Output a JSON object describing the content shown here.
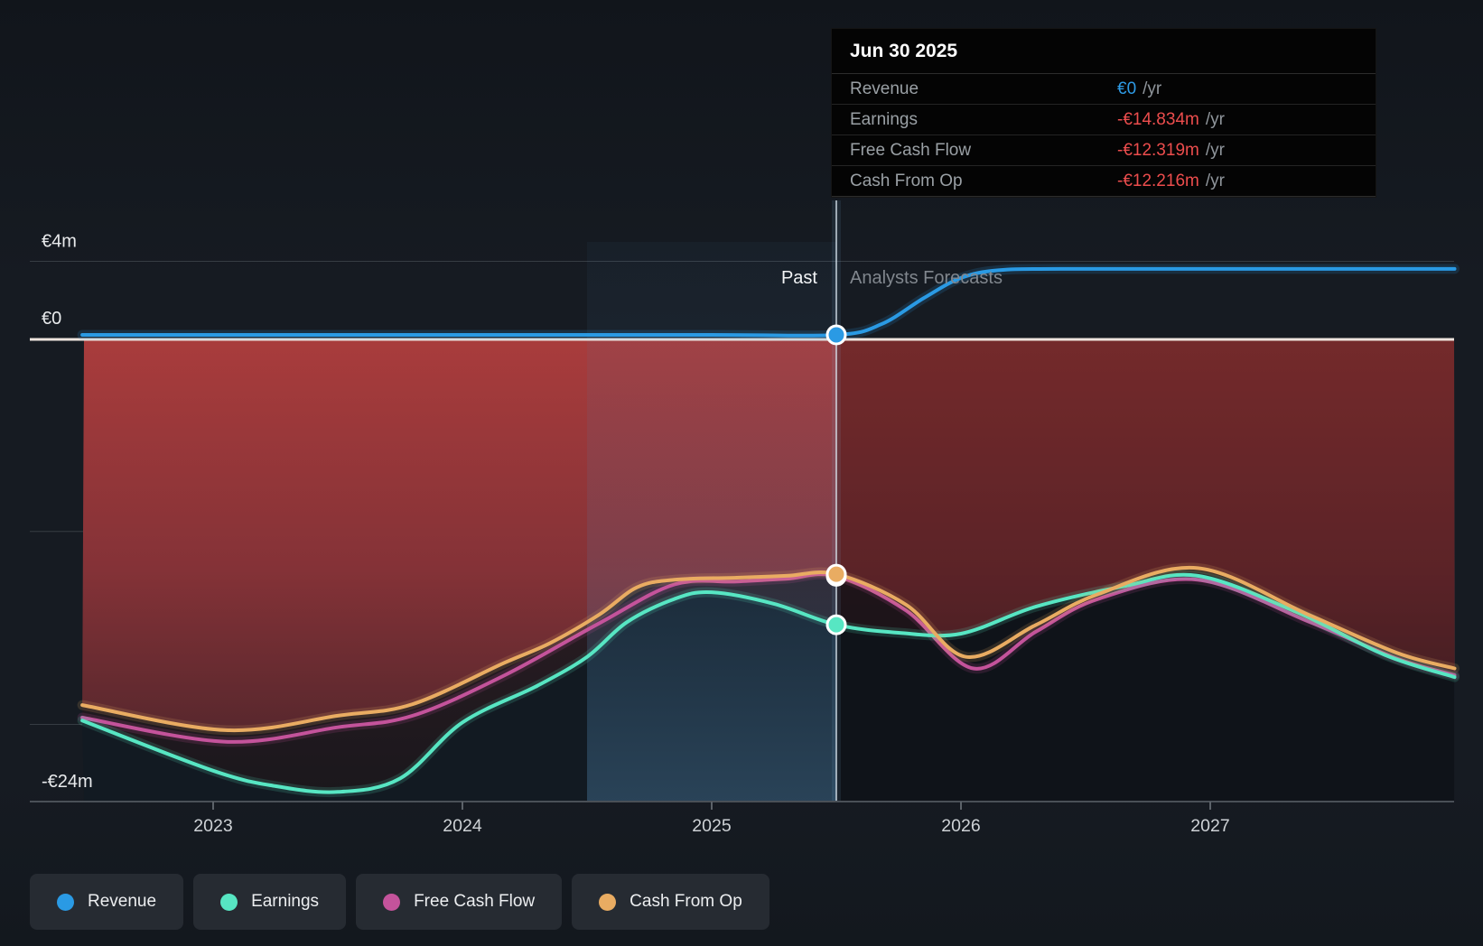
{
  "tooltip": {
    "date": "Jun 30 2025",
    "rows": [
      {
        "label": "Revenue",
        "value": "€0",
        "unit": "/yr",
        "value_color": "#2e9be6"
      },
      {
        "label": "Earnings",
        "value": "-€14.834m",
        "unit": "/yr",
        "value_color": "#ec4d4d"
      },
      {
        "label": "Free Cash Flow",
        "value": "-€12.319m",
        "unit": "/yr",
        "value_color": "#ec4d4d"
      },
      {
        "label": "Cash From Op",
        "value": "-€12.216m",
        "unit": "/yr",
        "value_color": "#ec4d4d"
      }
    ]
  },
  "regions": {
    "past_label": "Past",
    "forecast_label": "Analysts Forecasts"
  },
  "legend": {
    "items": [
      {
        "label": "Revenue",
        "color": "#2a9ae4"
      },
      {
        "label": "Earnings",
        "color": "#57e6c3"
      },
      {
        "label": "Free Cash Flow",
        "color": "#c4539b"
      },
      {
        "label": "Cash From Op",
        "color": "#e9ac62"
      }
    ]
  },
  "chart_data": {
    "type": "line",
    "unit": "EUR millions per year",
    "ylim": [
      -24,
      4
    ],
    "xlim": [
      2022.475,
      2027.98
    ],
    "grid": "horizontal-sparse",
    "x_ticks": [
      {
        "x": 2023,
        "label": "2023"
      },
      {
        "x": 2024,
        "label": "2024"
      },
      {
        "x": 2025,
        "label": "2025"
      },
      {
        "x": 2026,
        "label": "2026"
      },
      {
        "x": 2027,
        "label": "2027"
      }
    ],
    "y_labels": [
      {
        "m": 4,
        "text": "€4m"
      },
      {
        "m": 0,
        "text": "€0"
      },
      {
        "m": -24,
        "text": "-€24m"
      }
    ],
    "unlabeled_gridlines_m": [
      4,
      -10,
      -20
    ],
    "axis_bottom_m": -24,
    "divider_x": 2025.5,
    "past_band_x": [
      2024.5,
      2025.5
    ],
    "markers_at_divider": [
      {
        "series": "Revenue",
        "value": 0
      },
      {
        "series": "Free Cash Flow",
        "value": -12.319
      },
      {
        "series": "Cash From Op",
        "value": -12.216
      },
      {
        "series": "Earnings",
        "value": -14.834
      }
    ],
    "series": [
      {
        "name": "Revenue",
        "color": "#2a9ae4",
        "points": [
          [
            2022.475,
            0
          ],
          [
            2023,
            0
          ],
          [
            2024,
            0
          ],
          [
            2025,
            0
          ],
          [
            2025.5,
            0
          ],
          [
            2025.68,
            0.55
          ],
          [
            2025.85,
            1.9
          ],
          [
            2026.0,
            2.95
          ],
          [
            2026.15,
            3.35
          ],
          [
            2026.4,
            3.42
          ],
          [
            2027.2,
            3.42
          ],
          [
            2027.98,
            3.42
          ]
        ]
      },
      {
        "name": "Earnings",
        "color": "#57e6c3",
        "points": [
          [
            2022.475,
            -19.8
          ],
          [
            2023.0,
            -22.4
          ],
          [
            2023.25,
            -23.2
          ],
          [
            2023.5,
            -23.5
          ],
          [
            2023.75,
            -22.8
          ],
          [
            2024.0,
            -19.9
          ],
          [
            2024.3,
            -18.0
          ],
          [
            2024.5,
            -16.5
          ],
          [
            2024.66,
            -14.7
          ],
          [
            2024.85,
            -13.5
          ],
          [
            2025.0,
            -13.15
          ],
          [
            2025.25,
            -13.75
          ],
          [
            2025.5,
            -14.834
          ],
          [
            2025.75,
            -15.25
          ],
          [
            2026.0,
            -15.3
          ],
          [
            2026.3,
            -13.9
          ],
          [
            2026.65,
            -12.85
          ],
          [
            2026.95,
            -12.3
          ],
          [
            2027.35,
            -14.2
          ],
          [
            2027.7,
            -16.4
          ],
          [
            2027.98,
            -17.55
          ]
        ]
      },
      {
        "name": "Free Cash Flow",
        "color": "#c4539b",
        "points": [
          [
            2022.475,
            -19.65
          ],
          [
            2023.05,
            -20.9
          ],
          [
            2023.5,
            -20.15
          ],
          [
            2023.8,
            -19.55
          ],
          [
            2024.17,
            -17.45
          ],
          [
            2024.55,
            -14.75
          ],
          [
            2024.85,
            -12.75
          ],
          [
            2025.1,
            -12.6
          ],
          [
            2025.3,
            -12.45
          ],
          [
            2025.5,
            -12.319
          ],
          [
            2025.78,
            -14.1
          ],
          [
            2026.05,
            -17.1
          ],
          [
            2026.3,
            -15.2
          ],
          [
            2026.55,
            -13.5
          ],
          [
            2026.95,
            -12.5
          ],
          [
            2027.4,
            -14.7
          ],
          [
            2027.75,
            -16.6
          ],
          [
            2027.98,
            -17.45
          ]
        ]
      },
      {
        "name": "Cash From Op",
        "color": "#e9ac62",
        "points": [
          [
            2022.475,
            -19.0
          ],
          [
            2023.05,
            -20.3
          ],
          [
            2023.5,
            -19.55
          ],
          [
            2023.8,
            -18.95
          ],
          [
            2024.17,
            -16.8
          ],
          [
            2024.35,
            -15.8
          ],
          [
            2024.55,
            -14.3
          ],
          [
            2024.7,
            -12.9
          ],
          [
            2024.85,
            -12.5
          ],
          [
            2025.1,
            -12.4
          ],
          [
            2025.3,
            -12.3
          ],
          [
            2025.5,
            -12.216
          ],
          [
            2025.78,
            -13.8
          ],
          [
            2026.02,
            -16.5
          ],
          [
            2026.3,
            -14.85
          ],
          [
            2026.55,
            -13.25
          ],
          [
            2026.95,
            -11.9
          ],
          [
            2027.4,
            -14.35
          ],
          [
            2027.75,
            -16.3
          ],
          [
            2027.98,
            -17.1
          ]
        ]
      }
    ]
  }
}
